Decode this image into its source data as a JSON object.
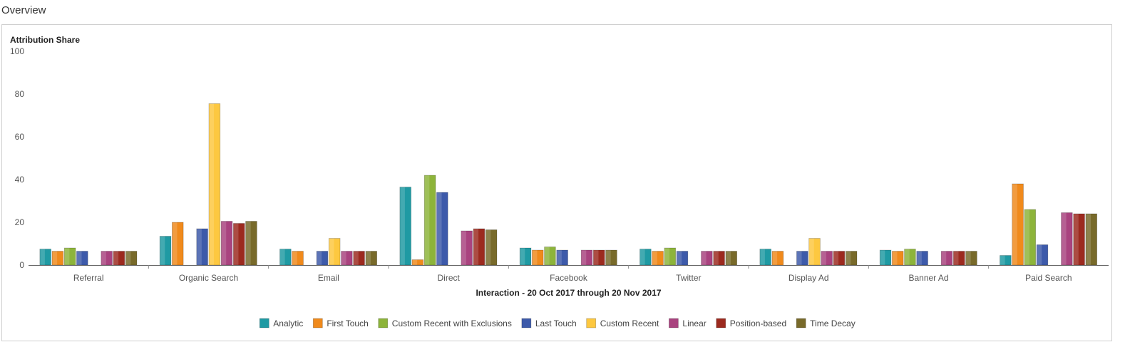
{
  "page": {
    "title": "Overview"
  },
  "chart_data": {
    "type": "bar",
    "ylabel": "Attribution Share",
    "xlabel": "Interaction - 20 Oct 2017 through 20 Nov 2017",
    "ylim": [
      0,
      100
    ],
    "yticks": [
      0,
      20,
      40,
      60,
      80,
      100
    ],
    "grid": false,
    "legend_position": "bottom",
    "categories": [
      "Referral",
      "Organic Search",
      "Email",
      "Direct",
      "Facebook",
      "Twitter",
      "Display Ad",
      "Banner Ad",
      "Paid Search"
    ],
    "series": [
      {
        "name": "Analytic",
        "color": "#1f9aa3",
        "values": [
          7.5,
          13.5,
          7.5,
          36.5,
          8,
          7.5,
          7.5,
          7,
          4.5
        ]
      },
      {
        "name": "First Touch",
        "color": "#f08a1c",
        "values": [
          6.5,
          20,
          6.5,
          2.5,
          7,
          6.5,
          6.5,
          6.5,
          38
        ]
      },
      {
        "name": "Custom Recent with Exclusions",
        "color": "#8db43a",
        "values": [
          8,
          0,
          0,
          42,
          8.5,
          8,
          0,
          7.5,
          26
        ]
      },
      {
        "name": "Last Touch",
        "color": "#3d5aaa",
        "values": [
          6.5,
          17,
          6.5,
          34,
          7,
          6.5,
          6.5,
          6.5,
          9.5
        ]
      },
      {
        "name": "Custom Recent",
        "color": "#fdc840",
        "values": [
          0,
          75.5,
          12.5,
          0,
          0,
          0,
          12.5,
          0,
          0
        ]
      },
      {
        "name": "Linear",
        "color": "#a9437f",
        "values": [
          6.5,
          20.5,
          6.5,
          16,
          7,
          6.5,
          6.5,
          6.5,
          24.5
        ]
      },
      {
        "name": "Position-based",
        "color": "#9c2a1f",
        "values": [
          6.5,
          19.5,
          6.5,
          17,
          7,
          6.5,
          6.5,
          6.5,
          24
        ]
      },
      {
        "name": "Time Decay",
        "color": "#786a2a",
        "values": [
          6.5,
          20.5,
          6.5,
          16.5,
          7,
          6.5,
          6.5,
          6.5,
          24
        ]
      }
    ]
  }
}
